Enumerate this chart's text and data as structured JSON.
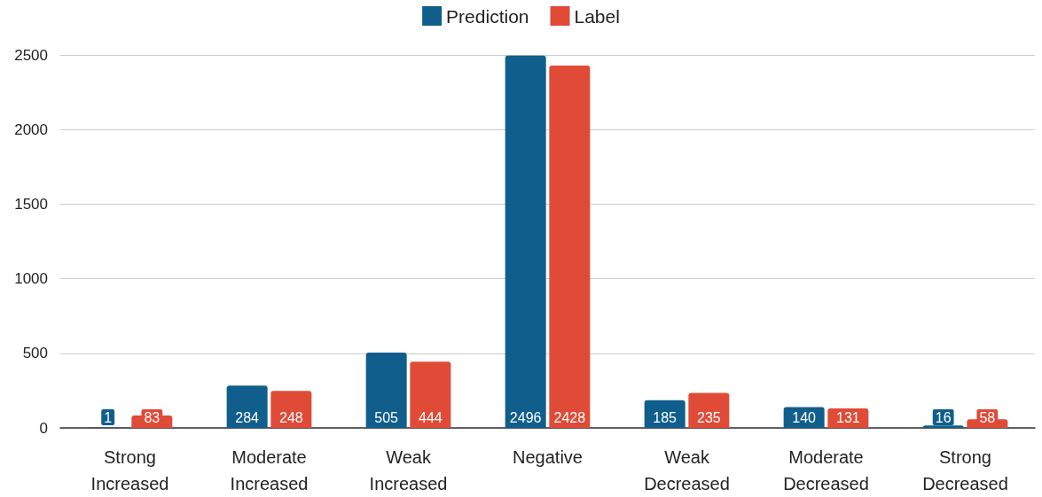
{
  "chart_data": {
    "type": "bar",
    "categories": [
      "Strong\nIncreased",
      "Moderate\nIncreased",
      "Weak\nIncreased",
      "Negative",
      "Weak\nDecreased",
      "Moderate\nDecreased",
      "Strong\nDecreased"
    ],
    "series": [
      {
        "name": "Prediction",
        "color": "#0f5e8c",
        "values": [
          1,
          284,
          505,
          2496,
          185,
          140,
          16
        ]
      },
      {
        "name": "Label",
        "color": "#e04b37",
        "values": [
          83,
          248,
          444,
          2428,
          235,
          131,
          58
        ]
      }
    ],
    "ylim": [
      0,
      2500
    ],
    "yticks": [
      0,
      500,
      1000,
      1500,
      2000,
      2500
    ],
    "grid": "y",
    "legend": "top",
    "data_labels": true
  }
}
